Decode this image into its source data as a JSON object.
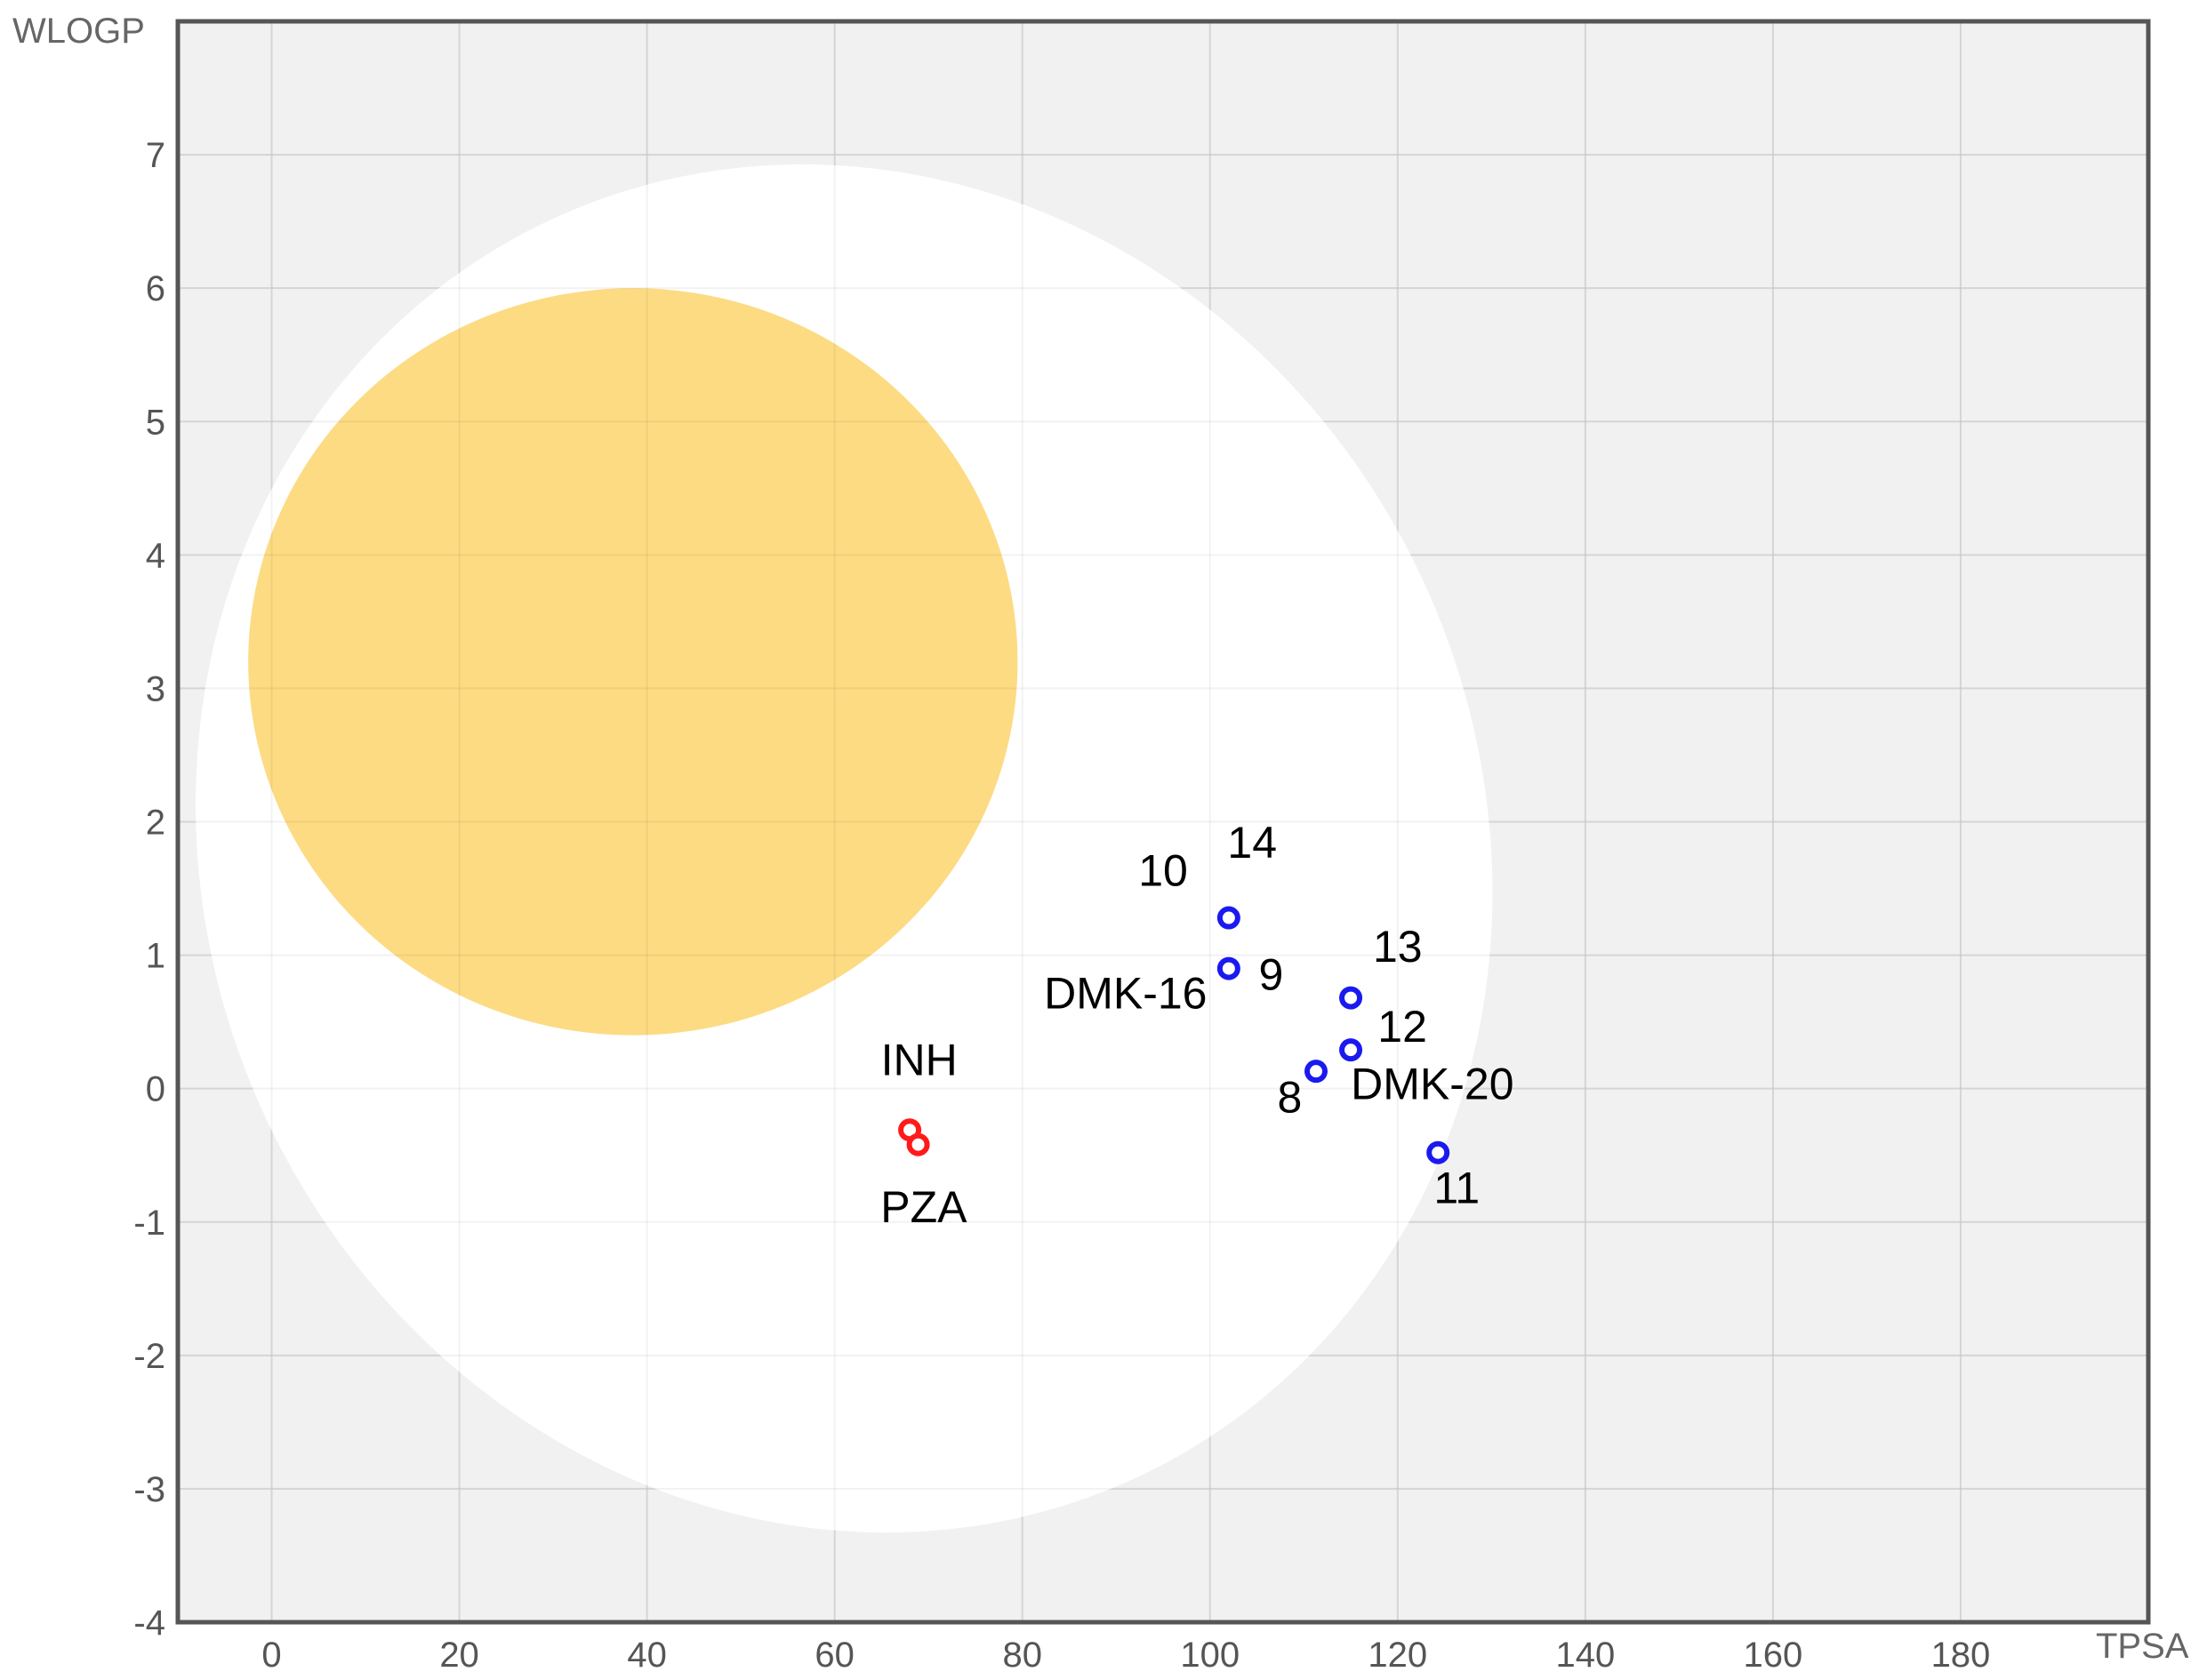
{
  "chart_data": {
    "type": "scatter",
    "title": "",
    "xlabel": "TPSA",
    "ylabel": "WLOGP",
    "xlim": [
      -10,
      200
    ],
    "ylim": [
      -4,
      8
    ],
    "x_ticks": [
      0,
      20,
      40,
      60,
      80,
      100,
      120,
      140,
      160,
      180
    ],
    "y_ticks": [
      -4,
      -3,
      -2,
      -1,
      0,
      1,
      2,
      3,
      4,
      5,
      6,
      7
    ],
    "grid": true,
    "regions": [
      {
        "name": "white-region",
        "color": "#ffffff",
        "center": [
          61,
          1.8
        ],
        "radii": [
          68,
          5.2
        ],
        "rotation_deg": -25
      },
      {
        "name": "yolk-region",
        "color": "#fcdb83",
        "center": [
          38.5,
          3.2
        ],
        "radii": [
          41,
          2.8
        ],
        "rotation_deg": 0
      }
    ],
    "series": [
      {
        "color": "#1a1af0",
        "points": [
          {
            "x": 102,
            "y": 1.28
          },
          {
            "x": 102,
            "y": 0.9
          },
          {
            "x": 115,
            "y": 0.68
          },
          {
            "x": 115,
            "y": 0.29
          },
          {
            "x": 111.3,
            "y": 0.13
          },
          {
            "x": 124.3,
            "y": -0.48
          }
        ]
      },
      {
        "color": "#ff1a1a",
        "points": [
          {
            "x": 68.0,
            "y": -0.31
          },
          {
            "x": 68.9,
            "y": -0.42
          }
        ]
      }
    ],
    "annotations": [
      {
        "text": "14",
        "x": 104.5,
        "y": 1.73
      },
      {
        "text": "10",
        "x": 95.0,
        "y": 1.52
      },
      {
        "text": "DMK-16",
        "x": 91.0,
        "y": 0.6
      },
      {
        "text": "9",
        "x": 106.5,
        "y": 0.74
      },
      {
        "text": "13",
        "x": 120.0,
        "y": 0.95
      },
      {
        "text": "12",
        "x": 120.5,
        "y": 0.35
      },
      {
        "text": "DMK-20",
        "x": 123.7,
        "y": -0.08
      },
      {
        "text": "8",
        "x": 108.5,
        "y": -0.18
      },
      {
        "text": "11",
        "x": 126.3,
        "y": -0.86
      },
      {
        "text": "INH",
        "x": 69.0,
        "y": 0.1
      },
      {
        "text": "PZA",
        "x": 69.5,
        "y": -1.0
      }
    ]
  }
}
